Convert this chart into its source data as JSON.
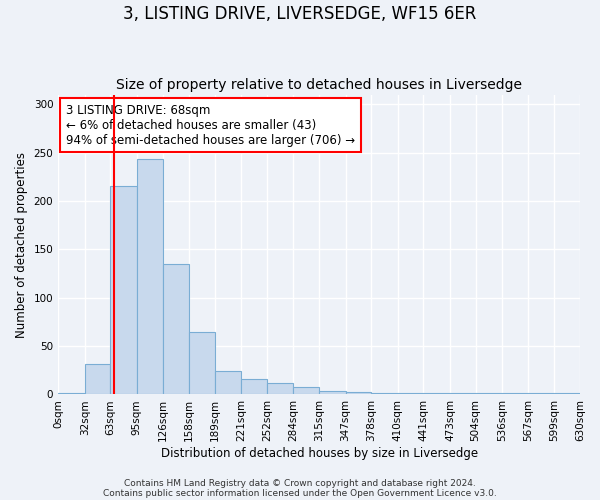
{
  "title": "3, LISTING DRIVE, LIVERSEDGE, WF15 6ER",
  "subtitle": "Size of property relative to detached houses in Liversedge",
  "xlabel": "Distribution of detached houses by size in Liversedge",
  "ylabel": "Number of detached properties",
  "bin_edges": [
    0,
    32,
    63,
    95,
    126,
    158,
    189,
    221,
    252,
    284,
    315,
    347,
    378,
    410,
    441,
    473,
    504,
    536,
    567,
    599,
    630
  ],
  "bar_heights": [
    1,
    31,
    215,
    243,
    135,
    65,
    24,
    16,
    12,
    8,
    4,
    3,
    1,
    1,
    1,
    1,
    1,
    1,
    1,
    1
  ],
  "bar_color": "#c8d9ed",
  "bar_edge_color": "#7aadd4",
  "property_line_x": 68,
  "property_line_color": "red",
  "annotation_text": "3 LISTING DRIVE: 68sqm\n← 6% of detached houses are smaller (43)\n94% of semi-detached houses are larger (706) →",
  "annotation_box_color": "white",
  "annotation_box_edge_color": "red",
  "ylim": [
    0,
    310
  ],
  "yticks": [
    0,
    50,
    100,
    150,
    200,
    250,
    300
  ],
  "footer_line1": "Contains HM Land Registry data © Crown copyright and database right 2024.",
  "footer_line2": "Contains public sector information licensed under the Open Government Licence v3.0.",
  "background_color": "#eef2f8",
  "grid_color": "white",
  "title_fontsize": 12,
  "subtitle_fontsize": 10,
  "axis_label_fontsize": 8.5,
  "tick_fontsize": 7.5,
  "annotation_fontsize": 8.5,
  "footer_fontsize": 6.5
}
